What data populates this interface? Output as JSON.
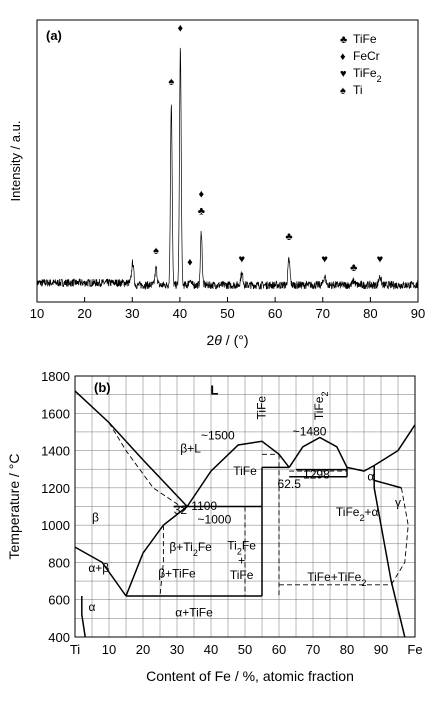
{
  "chart_data": [
    {
      "type": "line",
      "panel": "(a)",
      "xlabel_parts": [
        "2",
        "θ",
        " / (°)"
      ],
      "ylabel": "Intensity / a.u.",
      "xlim": [
        10,
        90
      ],
      "x_ticks": [
        10,
        20,
        30,
        40,
        50,
        60,
        70,
        80,
        90
      ],
      "y_ticks": [],
      "grid": false,
      "legend_position": "top-right",
      "legend": [
        {
          "symbol": "♣",
          "name": "TiFe",
          "sub": ""
        },
        {
          "symbol": "♦",
          "name": "FeCr",
          "sub": ""
        },
        {
          "symbol": "♥",
          "name": "TiFe",
          "sub": "2"
        },
        {
          "symbol": "♠",
          "name": "Ti",
          "sub": ""
        }
      ],
      "baseline": 0.06,
      "peaks": [
        {
          "x": 30.1,
          "height": 0.08,
          "width": 0.3
        },
        {
          "x": 35.0,
          "height": 0.06,
          "width": 0.3
        },
        {
          "x": 38.2,
          "height": 0.65,
          "width": 0.25
        },
        {
          "x": 40.1,
          "height": 0.84,
          "width": 0.25
        },
        {
          "x": 42.1,
          "height": 0.02,
          "width": 0.3
        },
        {
          "x": 44.5,
          "height": 0.19,
          "width": 0.25
        },
        {
          "x": 53.0,
          "height": 0.04,
          "width": 0.35
        },
        {
          "x": 62.9,
          "height": 0.09,
          "width": 0.3
        },
        {
          "x": 70.4,
          "height": 0.03,
          "width": 0.35
        },
        {
          "x": 76.5,
          "height": 0.015,
          "width": 0.35
        },
        {
          "x": 82.0,
          "height": 0.03,
          "width": 0.35
        }
      ],
      "peak_markers": [
        {
          "x": 35.0,
          "y": 0.17,
          "symbol": "♠"
        },
        {
          "x": 38.2,
          "y": 0.77,
          "symbol": "♠"
        },
        {
          "x": 40.1,
          "y": 0.96,
          "symbol": "♦"
        },
        {
          "x": 42.1,
          "y": 0.13,
          "symbol": "♦"
        },
        {
          "x": 44.5,
          "y": 0.37,
          "symbol": "♦"
        },
        {
          "x": 44.5,
          "y": 0.31,
          "symbol": "♣"
        },
        {
          "x": 53.0,
          "y": 0.14,
          "symbol": "♥"
        },
        {
          "x": 62.9,
          "y": 0.22,
          "symbol": "♣"
        },
        {
          "x": 70.4,
          "y": 0.14,
          "symbol": "♥"
        },
        {
          "x": 76.5,
          "y": 0.11,
          "symbol": "♣"
        },
        {
          "x": 82.0,
          "y": 0.14,
          "symbol": "♥"
        }
      ]
    },
    {
      "type": "line",
      "panel": "(b)",
      "subtype": "phase-diagram",
      "xlabel": "Content of Fe / %, atomic fraction",
      "ylabel": "Temperature / °C",
      "xlim": [
        0,
        100
      ],
      "ylim": [
        400,
        1800
      ],
      "x_ticks": [
        {
          "v": 0,
          "label": "Ti"
        },
        {
          "v": 10,
          "label": "10"
        },
        {
          "v": 20,
          "label": "20"
        },
        {
          "v": 30,
          "label": "30"
        },
        {
          "v": 40,
          "label": "40"
        },
        {
          "v": 50,
          "label": "50"
        },
        {
          "v": 60,
          "label": "60"
        },
        {
          "v": 70,
          "label": "70"
        },
        {
          "v": 80,
          "label": "80"
        },
        {
          "v": 90,
          "label": "90"
        },
        {
          "v": 100,
          "label": "Fe"
        }
      ],
      "y_ticks": [
        400,
        600,
        800,
        1000,
        1200,
        1400,
        1600,
        1800
      ],
      "grid": true,
      "lines": [
        {
          "style": "solid",
          "points": [
            [
              0,
              1720
            ],
            [
              10,
              1550
            ],
            [
              20,
              1350
            ],
            [
              33,
              1100
            ]
          ]
        },
        {
          "style": "solid",
          "points": [
            [
              33,
              1100
            ],
            [
              40,
              1290
            ],
            [
              48,
              1430
            ],
            [
              55,
              1450
            ],
            [
              60,
              1380
            ],
            [
              63,
              1310
            ]
          ]
        },
        {
          "style": "solid",
          "points": [
            [
              63,
              1310
            ],
            [
              67,
              1420
            ],
            [
              72,
              1470
            ],
            [
              77,
              1420
            ],
            [
              80,
              1310
            ]
          ]
        },
        {
          "style": "solid",
          "points": [
            [
              80,
              1310
            ],
            [
              85,
              1290
            ],
            [
              88,
              1320
            ],
            [
              95,
              1400
            ],
            [
              100,
              1538
            ]
          ]
        },
        {
          "style": "solid",
          "points": [
            [
              0,
              882
            ],
            [
              8,
              800
            ],
            [
              15,
              620
            ]
          ]
        },
        {
          "style": "solid",
          "points": [
            [
              15,
              620
            ],
            [
              20,
              850
            ],
            [
              26,
              1000
            ],
            [
              33,
              1100
            ]
          ]
        },
        {
          "style": "solid",
          "points": [
            [
              15,
              620
            ],
            [
              55,
              620
            ]
          ]
        },
        {
          "style": "solid",
          "points": [
            [
              2,
              620
            ],
            [
              2,
              520
            ],
            [
              3,
              400
            ]
          ]
        },
        {
          "style": "solid",
          "points": [
            [
              29,
              1100
            ],
            [
              55,
              1100
            ]
          ]
        },
        {
          "style": "solid",
          "points": [
            [
              55,
              620
            ],
            [
              55,
              1310
            ]
          ]
        },
        {
          "style": "solid",
          "points": [
            [
              55,
              1310
            ],
            [
              63,
              1310
            ]
          ]
        },
        {
          "style": "solid",
          "points": [
            [
              63,
              1260
            ],
            [
              80,
              1260
            ]
          ]
        },
        {
          "style": "solid",
          "points": [
            [
              65,
              1298
            ],
            [
              80,
              1298
            ]
          ]
        },
        {
          "style": "solid",
          "points": [
            [
              80,
              1260
            ],
            [
              80,
              1310
            ]
          ]
        },
        {
          "style": "solid",
          "points": [
            [
              88,
              1320
            ],
            [
              88,
              1200
            ],
            [
              90,
              1000
            ],
            [
              93,
              700
            ],
            [
              97,
              400
            ]
          ]
        },
        {
          "style": "solid",
          "points": [
            [
              88,
              1240
            ],
            [
              96,
              1200
            ]
          ]
        },
        {
          "style": "dashed",
          "points": [
            [
              10,
              1550
            ],
            [
              15,
              1400
            ],
            [
              23,
              1200
            ],
            [
              32,
              1090
            ]
          ]
        },
        {
          "style": "dashed",
          "points": [
            [
              26,
              1000
            ],
            [
              26,
              800
            ],
            [
              25,
              620
            ]
          ]
        },
        {
          "style": "dashed",
          "points": [
            [
              50,
              1100
            ],
            [
              50,
              620
            ]
          ]
        },
        {
          "style": "dashed",
          "points": [
            [
              55,
              1380
            ],
            [
              60,
              1380
            ]
          ]
        },
        {
          "style": "dashed",
          "points": [
            [
              60,
              1380
            ],
            [
              60,
              620
            ]
          ]
        },
        {
          "style": "dashed",
          "points": [
            [
              63,
              1290
            ],
            [
              80,
              1290
            ]
          ]
        },
        {
          "style": "dashed",
          "points": [
            [
              60,
              680
            ],
            [
              93,
              680
            ]
          ]
        },
        {
          "style": "dashed",
          "points": [
            [
              96,
              1200
            ],
            [
              98,
              1000
            ],
            [
              97,
              800
            ],
            [
              93,
              680
            ]
          ]
        }
      ],
      "labels": [
        {
          "x": 41,
          "y": 1700,
          "text": "L",
          "sub": "",
          "tail": "",
          "bold": true,
          "size": 13
        },
        {
          "x": 34,
          "y": 1390,
          "text": "β+L",
          "sub": "",
          "tail": ""
        },
        {
          "x": 42,
          "y": 1460,
          "text": "~1500",
          "sub": "",
          "tail": ""
        },
        {
          "x": 69,
          "y": 1480,
          "text": "~1480",
          "sub": "",
          "tail": ""
        },
        {
          "x": 50,
          "y": 1270,
          "text": "TiFe",
          "sub": "",
          "tail": ""
        },
        {
          "x": 71,
          "y": 1250,
          "text": "1298",
          "sub": "",
          "tail": ""
        },
        {
          "x": 63,
          "y": 1200,
          "text": "62.5",
          "sub": "",
          "tail": ""
        },
        {
          "x": 87,
          "y": 1240,
          "text": "α",
          "sub": "",
          "tail": ""
        },
        {
          "x": 95,
          "y": 1100,
          "text": "γ",
          "sub": "",
          "tail": ""
        },
        {
          "x": 83,
          "y": 1050,
          "text": "TiFe",
          "sub": "2",
          "tail": "+α"
        },
        {
          "x": 6,
          "y": 1020,
          "text": "β",
          "sub": "",
          "tail": ""
        },
        {
          "x": 38,
          "y": 1080,
          "text": "1100",
          "sub": "",
          "tail": ""
        },
        {
          "x": 41,
          "y": 1010,
          "text": "~1000",
          "sub": "",
          "tail": ""
        },
        {
          "x": 34,
          "y": 860,
          "text": "β+Ti",
          "sub": "2",
          "tail": "Fe"
        },
        {
          "x": 49,
          "y": 870,
          "text": "Ti",
          "sub": "2",
          "tail": "Fe"
        },
        {
          "x": 49,
          "y": 790,
          "text": "+",
          "sub": "",
          "tail": ""
        },
        {
          "x": 49,
          "y": 710,
          "text": "TiFe",
          "sub": "",
          "tail": ""
        },
        {
          "x": 30,
          "y": 720,
          "text": "β+TiFe",
          "sub": "",
          "tail": ""
        },
        {
          "x": 7,
          "y": 750,
          "text": "α+β",
          "sub": "",
          "tail": ""
        },
        {
          "x": 5,
          "y": 540,
          "text": "α",
          "sub": "",
          "tail": ""
        },
        {
          "x": 35,
          "y": 510,
          "text": "α+TiFe",
          "sub": "",
          "tail": ""
        },
        {
          "x": 77,
          "y": 700,
          "text": "TiFe+TiFe",
          "sub": "2",
          "tail": ""
        },
        {
          "x": 31,
          "y": 1060,
          "text": "32",
          "sub": "",
          "tail": ""
        }
      ],
      "rotated_labels": [
        {
          "x": 56,
          "y": 1630,
          "text": "TiFe",
          "sub": ""
        },
        {
          "x": 73,
          "y": 1640,
          "text": "TiFe",
          "sub": "2"
        }
      ]
    }
  ]
}
